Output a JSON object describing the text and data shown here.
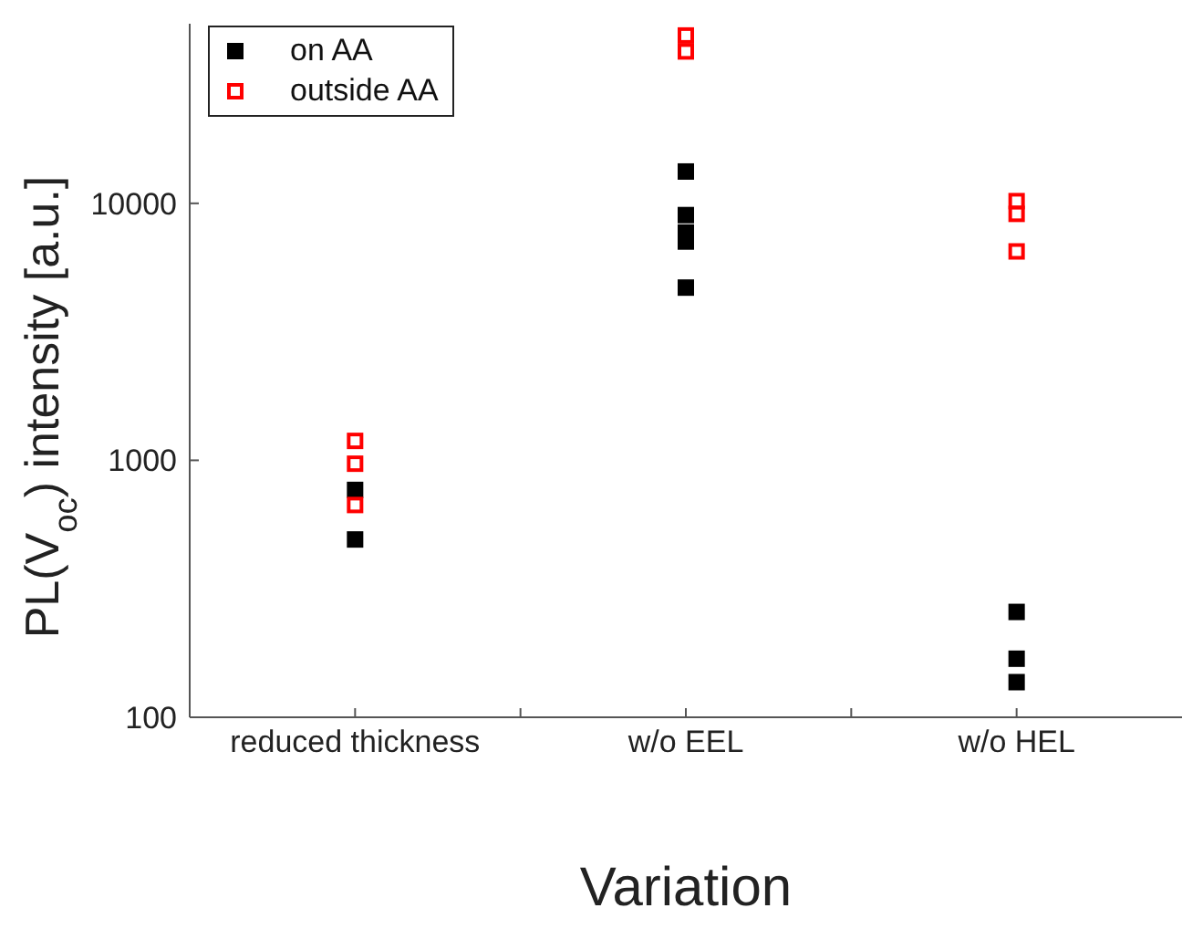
{
  "chart_data": {
    "type": "scatter",
    "xlabel": "Variation",
    "ylabel": "PL(V$_{oc}$) intensity [a.u.]",
    "categories": [
      "reduced thickness",
      "w/o EEL",
      "w/o HEL"
    ],
    "series": [
      {
        "name": "on AA",
        "color": "#000000",
        "x": [
          "reduced thickness",
          "reduced thickness",
          "w/o EEL",
          "w/o EEL",
          "w/o EEL",
          "w/o EEL",
          "w/o EEL",
          "w/o HEL",
          "w/o HEL",
          "w/o HEL"
        ],
        "values": [
          767,
          492,
          13300,
          9000,
          7700,
          7100,
          4700,
          257,
          169,
          137
        ]
      },
      {
        "name": "outside AA",
        "color": "#ff0000",
        "x": [
          "reduced thickness",
          "reduced thickness",
          "reduced thickness",
          "w/o EEL",
          "w/o EEL",
          "w/o HEL",
          "w/o HEL",
          "w/o HEL"
        ],
        "values": [
          1190,
          970,
          670,
          45000,
          39000,
          10200,
          9100,
          6500
        ]
      }
    ],
    "log": true,
    "ylim": [
      100,
      50000
    ],
    "yticks": [
      100,
      1000,
      10000
    ],
    "marker": "square",
    "legend": "top left",
    "grid": false
  }
}
